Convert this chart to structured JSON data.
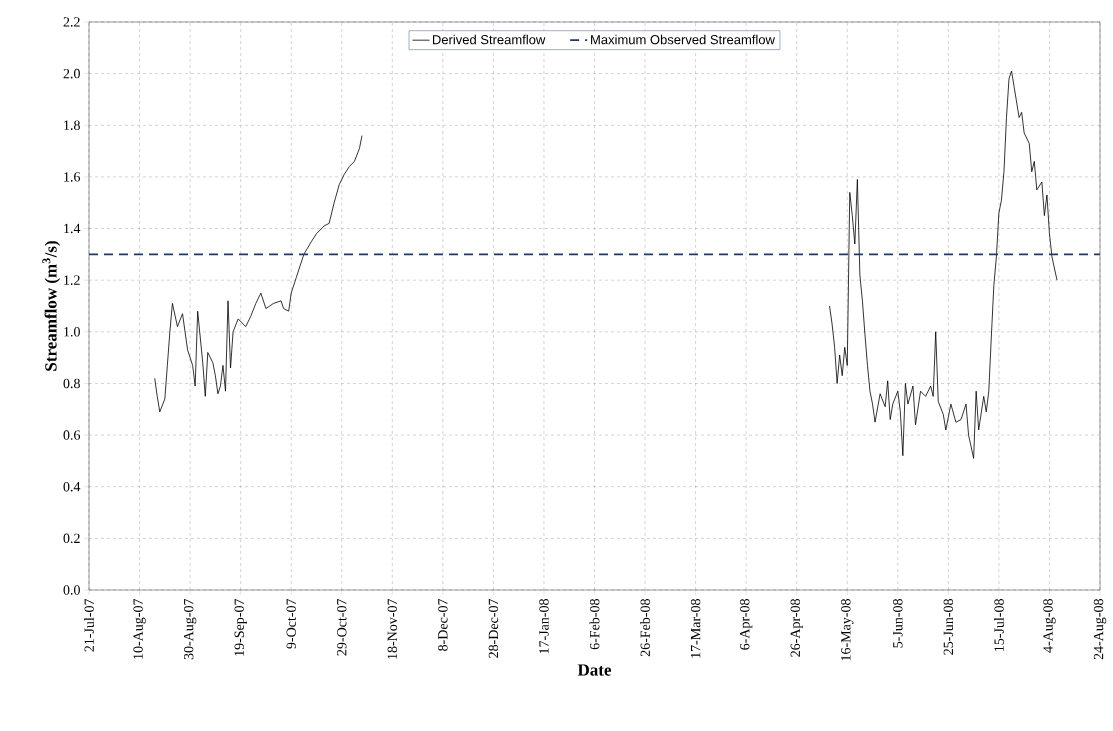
{
  "chart_data": {
    "type": "line",
    "xlabel": "Date",
    "ylabel": "Streamflow (m$^{3}$/s)",
    "xlim": [
      "2007-07-21",
      "2008-08-24"
    ],
    "xticks": [
      {
        "value": "2007-07-21",
        "label": "21-Jul-07"
      },
      {
        "value": "2007-08-10",
        "label": "10-Aug-07"
      },
      {
        "value": "2007-08-30",
        "label": "30-Aug-07"
      },
      {
        "value": "2007-09-19",
        "label": "19-Sep-07"
      },
      {
        "value": "2007-10-09",
        "label": "9-Oct-07"
      },
      {
        "value": "2007-10-29",
        "label": "29-Oct-07"
      },
      {
        "value": "2007-11-18",
        "label": "18-Nov-07"
      },
      {
        "value": "2007-12-08",
        "label": "8-Dec-07"
      },
      {
        "value": "2007-12-28",
        "label": "28-Dec-07"
      },
      {
        "value": "2008-01-17",
        "label": "17-Jan-08"
      },
      {
        "value": "2008-02-06",
        "label": "6-Feb-08"
      },
      {
        "value": "2008-02-26",
        "label": "26-Feb-08"
      },
      {
        "value": "2008-03-17",
        "label": "17-Mar-08"
      },
      {
        "value": "2008-04-06",
        "label": "6-Apr-08"
      },
      {
        "value": "2008-04-26",
        "label": "26-Apr-08"
      },
      {
        "value": "2008-05-16",
        "label": "16-May-08"
      },
      {
        "value": "2008-06-05",
        "label": "5-Jun-08"
      },
      {
        "value": "2008-06-25",
        "label": "25-Jun-08"
      },
      {
        "value": "2008-07-15",
        "label": "15-Jul-08"
      },
      {
        "value": "2008-08-04",
        "label": "4-Aug-08"
      },
      {
        "value": "2008-08-24",
        "label": "24-Aug-08"
      }
    ],
    "ylim": [
      0,
      2.2
    ],
    "yticks": [
      {
        "value": 0,
        "label": "0.0"
      },
      {
        "value": 0.2,
        "label": "0.2"
      },
      {
        "value": 0.4,
        "label": "0.4"
      },
      {
        "value": 0.6,
        "label": "0.6"
      },
      {
        "value": 0.8,
        "label": "0.8"
      },
      {
        "value": 1,
        "label": "1.0"
      },
      {
        "value": 1.2,
        "label": "1.2"
      },
      {
        "value": 1.4,
        "label": "1.4"
      },
      {
        "value": 1.6,
        "label": "1.6"
      },
      {
        "value": 1.8,
        "label": "1.8"
      },
      {
        "value": 2,
        "label": "2.0"
      },
      {
        "value": 2.2,
        "label": "2.2"
      }
    ],
    "grid": true,
    "legend": "top",
    "marker": "none",
    "line_style": "solid",
    "ref_lines": [
      {
        "axis": "y",
        "value": 1.3,
        "label": "Maximum Observed Streamflow",
        "color": "#1f3864",
        "line_style": "dashed"
      }
    ],
    "series": [
      {
        "name": "Derived Streamflow",
        "color": "#000000",
        "x": [
          "2007-08-16",
          "2007-08-17",
          "2007-08-18",
          "2007-08-20",
          "2007-08-21",
          "2007-08-22",
          "2007-08-23",
          "2007-08-25",
          "2007-08-27",
          "2007-08-29",
          "2007-08-31",
          "2007-09-01",
          "2007-09-02",
          "2007-09-04",
          "2007-09-05",
          "2007-09-06",
          "2007-09-08",
          "2007-09-09",
          "2007-09-10",
          "2007-09-11",
          "2007-09-12",
          "2007-09-13",
          "2007-09-14",
          "2007-09-15",
          "2007-09-16",
          "2007-09-18",
          "2007-09-21",
          "2007-09-23",
          "2007-09-25",
          "2007-09-27",
          "2007-09-29",
          "2007-10-02",
          "2007-10-05",
          "2007-10-06",
          "2007-10-08",
          "2007-10-09",
          "2007-10-11",
          "2007-10-14",
          "2007-10-17",
          "2007-10-19",
          "2007-10-22",
          "2007-10-24",
          "2007-10-26",
          "2007-10-28",
          "2007-10-30",
          "2007-11-01",
          "2007-11-03",
          "2007-11-05",
          "2007-11-06",
          "2008-01-01",
          "2008-05-09",
          "2008-05-10",
          "2008-05-11",
          "2008-05-12",
          "2008-05-13",
          "2008-05-14",
          "2008-05-15",
          "2008-05-16",
          "2008-05-17",
          "2008-05-18",
          "2008-05-19",
          "2008-05-20",
          "2008-05-21",
          "2008-05-22",
          "2008-05-23",
          "2008-05-24",
          "2008-05-25",
          "2008-05-26",
          "2008-05-27",
          "2008-05-29",
          "2008-05-31",
          "2008-06-01",
          "2008-06-02",
          "2008-06-03",
          "2008-06-05",
          "2008-06-06",
          "2008-06-07",
          "2008-06-08",
          "2008-06-09",
          "2008-06-11",
          "2008-06-12",
          "2008-06-14",
          "2008-06-16",
          "2008-06-18",
          "2008-06-19",
          "2008-06-20",
          "2008-06-21",
          "2008-06-23",
          "2008-06-24",
          "2008-06-26",
          "2008-06-28",
          "2008-06-30",
          "2008-07-02",
          "2008-07-03",
          "2008-07-05",
          "2008-07-06",
          "2008-07-07",
          "2008-07-09",
          "2008-07-10",
          "2008-07-11",
          "2008-07-12",
          "2008-07-13",
          "2008-07-14",
          "2008-07-15",
          "2008-07-16",
          "2008-07-17",
          "2008-07-18",
          "2008-07-19",
          "2008-07-20",
          "2008-07-21",
          "2008-07-23",
          "2008-07-24",
          "2008-07-25",
          "2008-07-27",
          "2008-07-28",
          "2008-07-29",
          "2008-07-30",
          "2008-08-01",
          "2008-08-02",
          "2008-08-03",
          "2008-08-04",
          "2008-08-05",
          "2008-08-07"
        ],
        "values": [
          0.82,
          0.75,
          0.69,
          0.74,
          0.87,
          1.0,
          1.11,
          1.02,
          1.07,
          0.93,
          0.87,
          0.79,
          1.08,
          0.88,
          0.75,
          0.92,
          0.88,
          0.83,
          0.76,
          0.79,
          0.87,
          0.77,
          1.12,
          0.86,
          1.0,
          1.05,
          1.02,
          1.06,
          1.11,
          1.15,
          1.09,
          1.11,
          1.12,
          1.09,
          1.08,
          1.15,
          1.21,
          1.3,
          1.35,
          1.38,
          1.41,
          1.42,
          1.5,
          1.57,
          1.61,
          1.64,
          1.66,
          1.71,
          1.76,
          null,
          1.1,
          1.03,
          0.94,
          0.8,
          0.91,
          0.83,
          0.94,
          0.87,
          1.54,
          1.45,
          1.34,
          1.59,
          1.22,
          1.12,
          0.99,
          0.87,
          0.77,
          0.72,
          0.65,
          0.76,
          0.71,
          0.81,
          0.66,
          0.72,
          0.77,
          0.69,
          0.52,
          0.8,
          0.72,
          0.79,
          0.64,
          0.77,
          0.75,
          0.79,
          0.75,
          1.0,
          0.73,
          0.68,
          0.62,
          0.72,
          0.65,
          0.66,
          0.72,
          0.6,
          0.51,
          0.77,
          0.62,
          0.75,
          0.69,
          0.77,
          0.98,
          1.18,
          1.29,
          1.46,
          1.51,
          1.62,
          1.83,
          1.98,
          2.01,
          1.95,
          1.83,
          1.85,
          1.77,
          1.73,
          1.62,
          1.66,
          1.55,
          1.58,
          1.45,
          1.53,
          1.38,
          1.29,
          1.2
        ]
      }
    ]
  }
}
